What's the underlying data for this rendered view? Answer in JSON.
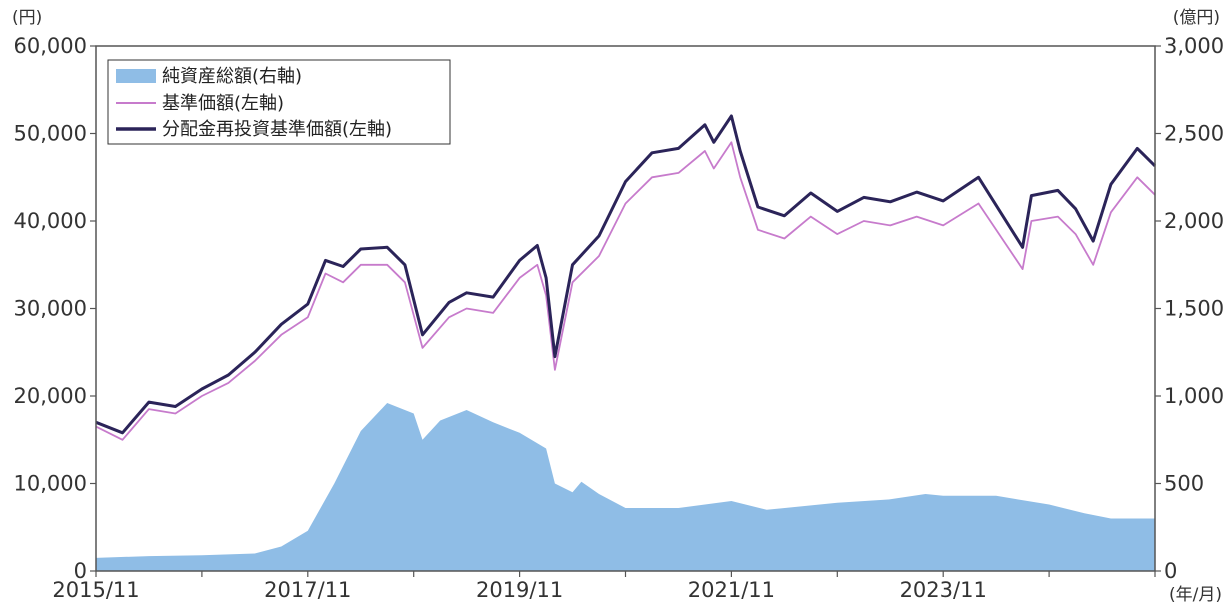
{
  "chart_data": {
    "type": "area+line",
    "left_axis_unit": "(円)",
    "right_axis_unit": "(億円)",
    "x_axis_unit": "(年/月)",
    "x_range": [
      "2015-11",
      "2025-11"
    ],
    "x_tick_labels": [
      "2015/11",
      "2017/11",
      "2019/11",
      "2021/11",
      "2023/11"
    ],
    "x_tick_dates": [
      "2015-11",
      "2017-11",
      "2019-11",
      "2021-11",
      "2023-11"
    ],
    "y_left": {
      "range": [
        0,
        60000
      ],
      "ticks": [
        "0",
        "10,000",
        "20,000",
        "30,000",
        "40,000",
        "50,000",
        "60,000"
      ]
    },
    "y_right": {
      "range": [
        0,
        3000
      ],
      "ticks": [
        "0",
        "500",
        "1,000",
        "1,500",
        "2,000",
        "2,500",
        "3,000"
      ]
    },
    "grid": false,
    "legend_position": "top-left",
    "colors": {
      "net_assets": "#8fbde6",
      "nav": "#c77bcc",
      "reinvested_nav": "#2b2459"
    },
    "series": [
      {
        "name": "純資産総額(右軸)",
        "kind": "area",
        "axis": "right",
        "points": [
          [
            "2015-11",
            75
          ],
          [
            "2016-05",
            85
          ],
          [
            "2016-11",
            90
          ],
          [
            "2017-05",
            100
          ],
          [
            "2017-08",
            140
          ],
          [
            "2017-11",
            230
          ],
          [
            "2018-02",
            500
          ],
          [
            "2018-05",
            800
          ],
          [
            "2018-08",
            960
          ],
          [
            "2018-11",
            900
          ],
          [
            "2018-12",
            750
          ],
          [
            "2019-02",
            860
          ],
          [
            "2019-05",
            920
          ],
          [
            "2019-08",
            850
          ],
          [
            "2019-11",
            790
          ],
          [
            "2020-02",
            700
          ],
          [
            "2020-03",
            500
          ],
          [
            "2020-05",
            450
          ],
          [
            "2020-06",
            510
          ],
          [
            "2020-08",
            440
          ],
          [
            "2020-11",
            360
          ],
          [
            "2021-05",
            360
          ],
          [
            "2021-11",
            400
          ],
          [
            "2022-03",
            350
          ],
          [
            "2022-11",
            390
          ],
          [
            "2023-05",
            410
          ],
          [
            "2023-09",
            440
          ],
          [
            "2023-11",
            430
          ],
          [
            "2024-05",
            430
          ],
          [
            "2024-11",
            380
          ],
          [
            "2025-03",
            330
          ],
          [
            "2025-06",
            300
          ],
          [
            "2025-11",
            300
          ]
        ]
      },
      {
        "name": "基準価額(左軸)",
        "kind": "line",
        "axis": "left",
        "points": [
          [
            "2015-11",
            16500
          ],
          [
            "2016-02",
            15000
          ],
          [
            "2016-05",
            18500
          ],
          [
            "2016-08",
            18000
          ],
          [
            "2016-11",
            20000
          ],
          [
            "2017-02",
            21500
          ],
          [
            "2017-05",
            24000
          ],
          [
            "2017-08",
            27000
          ],
          [
            "2017-11",
            29000
          ],
          [
            "2018-01",
            34000
          ],
          [
            "2018-03",
            33000
          ],
          [
            "2018-05",
            35000
          ],
          [
            "2018-08",
            35000
          ],
          [
            "2018-10",
            33000
          ],
          [
            "2018-12",
            25500
          ],
          [
            "2019-03",
            29000
          ],
          [
            "2019-05",
            30000
          ],
          [
            "2019-08",
            29500
          ],
          [
            "2019-11",
            33500
          ],
          [
            "2020-01",
            35000
          ],
          [
            "2020-02",
            31500
          ],
          [
            "2020-03",
            23000
          ],
          [
            "2020-05",
            33000
          ],
          [
            "2020-08",
            36000
          ],
          [
            "2020-11",
            42000
          ],
          [
            "2021-02",
            45000
          ],
          [
            "2021-05",
            45500
          ],
          [
            "2021-08",
            48000
          ],
          [
            "2021-09",
            46000
          ],
          [
            "2021-11",
            49000
          ],
          [
            "2021-12",
            45000
          ],
          [
            "2022-02",
            39000
          ],
          [
            "2022-05",
            38000
          ],
          [
            "2022-08",
            40500
          ],
          [
            "2022-11",
            38500
          ],
          [
            "2023-02",
            40000
          ],
          [
            "2023-05",
            39500
          ],
          [
            "2023-08",
            40500
          ],
          [
            "2023-11",
            39500
          ],
          [
            "2024-03",
            42000
          ],
          [
            "2024-08",
            34500
          ],
          [
            "2024-09",
            40000
          ],
          [
            "2024-12",
            40500
          ],
          [
            "2025-02",
            38500
          ],
          [
            "2025-04",
            35000
          ],
          [
            "2025-06",
            41000
          ],
          [
            "2025-09",
            45000
          ],
          [
            "2025-11",
            43000
          ]
        ]
      },
      {
        "name": "分配金再投資基準価額(左軸)",
        "kind": "line",
        "axis": "left",
        "points": [
          [
            "2015-11",
            17000
          ],
          [
            "2016-02",
            15800
          ],
          [
            "2016-05",
            19300
          ],
          [
            "2016-08",
            18800
          ],
          [
            "2016-11",
            20800
          ],
          [
            "2017-02",
            22400
          ],
          [
            "2017-05",
            25000
          ],
          [
            "2017-08",
            28200
          ],
          [
            "2017-11",
            30500
          ],
          [
            "2018-01",
            35500
          ],
          [
            "2018-03",
            34800
          ],
          [
            "2018-05",
            36800
          ],
          [
            "2018-08",
            37000
          ],
          [
            "2018-10",
            35000
          ],
          [
            "2018-12",
            27000
          ],
          [
            "2019-03",
            30700
          ],
          [
            "2019-05",
            31800
          ],
          [
            "2019-08",
            31300
          ],
          [
            "2019-11",
            35500
          ],
          [
            "2020-01",
            37200
          ],
          [
            "2020-02",
            33500
          ],
          [
            "2020-03",
            24500
          ],
          [
            "2020-05",
            35000
          ],
          [
            "2020-08",
            38300
          ],
          [
            "2020-11",
            44500
          ],
          [
            "2021-02",
            47800
          ],
          [
            "2021-05",
            48300
          ],
          [
            "2021-08",
            51000
          ],
          [
            "2021-09",
            49000
          ],
          [
            "2021-11",
            52000
          ],
          [
            "2021-12",
            48000
          ],
          [
            "2022-02",
            41600
          ],
          [
            "2022-05",
            40600
          ],
          [
            "2022-08",
            43200
          ],
          [
            "2022-11",
            41100
          ],
          [
            "2023-02",
            42700
          ],
          [
            "2023-05",
            42200
          ],
          [
            "2023-08",
            43300
          ],
          [
            "2023-11",
            42300
          ],
          [
            "2024-03",
            45000
          ],
          [
            "2024-08",
            37000
          ],
          [
            "2024-09",
            42900
          ],
          [
            "2024-12",
            43500
          ],
          [
            "2025-02",
            41400
          ],
          [
            "2025-04",
            37700
          ],
          [
            "2025-06",
            44200
          ],
          [
            "2025-09",
            48300
          ],
          [
            "2025-11",
            46300
          ]
        ]
      }
    ]
  }
}
